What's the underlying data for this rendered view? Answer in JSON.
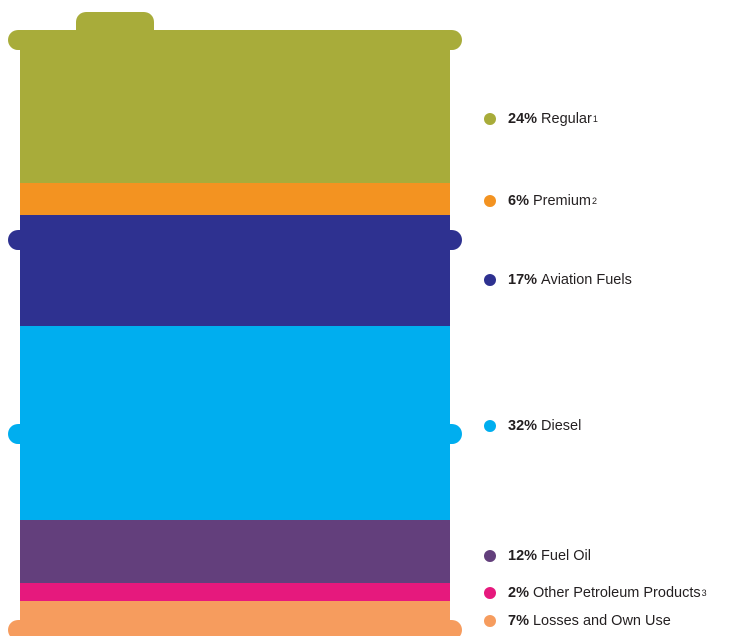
{
  "chart_data": {
    "type": "stacked-bar",
    "series": [
      {
        "name": "Regular",
        "value": 24,
        "value_label": "24%",
        "footnote": "1",
        "color": "#a8ac3a"
      },
      {
        "name": "Premium",
        "value": 6,
        "value_label": "6%",
        "footnote": "2",
        "color": "#f39321"
      },
      {
        "name": "Aviation Fuels",
        "value": 17,
        "value_label": "17%",
        "footnote": "",
        "color": "#2e3190"
      },
      {
        "name": "Diesel",
        "value": 32,
        "value_label": "32%",
        "footnote": "",
        "color": "#00aeef"
      },
      {
        "name": "Fuel Oil",
        "value": 12,
        "value_label": "12%",
        "footnote": "",
        "color": "#633f7c"
      },
      {
        "name": "Other Petroleum Products",
        "value": 2,
        "value_label": "2%",
        "footnote": "3",
        "color": "#e6197d"
      },
      {
        "name": "Losses and Own Use",
        "value": 7,
        "value_label": "7%",
        "footnote": "",
        "color": "#f69c5e"
      }
    ],
    "shape": "oil-barrel",
    "legend_position": "right"
  }
}
